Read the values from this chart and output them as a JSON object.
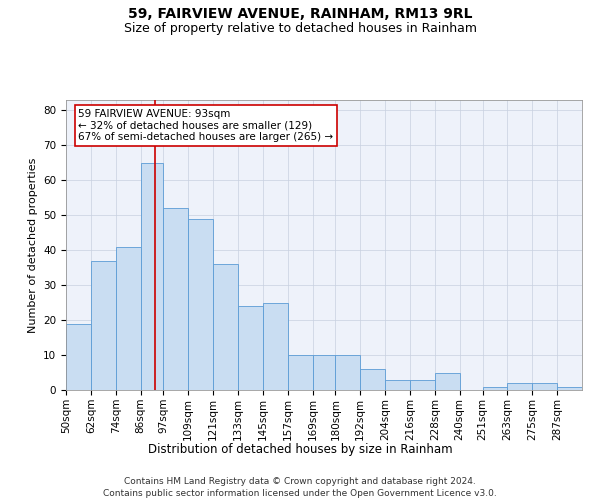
{
  "title1": "59, FAIRVIEW AVENUE, RAINHAM, RM13 9RL",
  "title2": "Size of property relative to detached houses in Rainham",
  "xlabel": "Distribution of detached houses by size in Rainham",
  "ylabel": "Number of detached properties",
  "categories": [
    "50sqm",
    "62sqm",
    "74sqm",
    "86sqm",
    "97sqm",
    "109sqm",
    "121sqm",
    "133sqm",
    "145sqm",
    "157sqm",
    "169sqm",
    "180sqm",
    "192sqm",
    "204sqm",
    "216sqm",
    "228sqm",
    "240sqm",
    "251sqm",
    "263sqm",
    "275sqm",
    "287sqm"
  ],
  "values": [
    19,
    37,
    41,
    65,
    52,
    49,
    36,
    24,
    25,
    10,
    10,
    10,
    6,
    3,
    3,
    5,
    0,
    1,
    2,
    2,
    1
  ],
  "bar_color": "#c9ddf2",
  "bar_edge_color": "#5b9bd5",
  "property_line_x": 93,
  "bin_edges": [
    50,
    62,
    74,
    86,
    97,
    109,
    121,
    133,
    145,
    157,
    169,
    180,
    192,
    204,
    216,
    228,
    240,
    251,
    263,
    275,
    287,
    299
  ],
  "annotation_text": "59 FAIRVIEW AVENUE: 93sqm\n← 32% of detached houses are smaller (129)\n67% of semi-detached houses are larger (265) →",
  "annotation_box_color": "#ffffff",
  "annotation_box_edge": "#cc0000",
  "vline_color": "#cc0000",
  "grid_color": "#c8d0e0",
  "bg_color": "#eef2fa",
  "ylim": [
    0,
    83
  ],
  "yticks": [
    0,
    10,
    20,
    30,
    40,
    50,
    60,
    70,
    80
  ],
  "footer1": "Contains HM Land Registry data © Crown copyright and database right 2024.",
  "footer2": "Contains public sector information licensed under the Open Government Licence v3.0.",
  "title1_fontsize": 10,
  "title2_fontsize": 9,
  "xlabel_fontsize": 8.5,
  "ylabel_fontsize": 8,
  "tick_fontsize": 7.5,
  "annotation_fontsize": 7.5,
  "footer_fontsize": 6.5
}
